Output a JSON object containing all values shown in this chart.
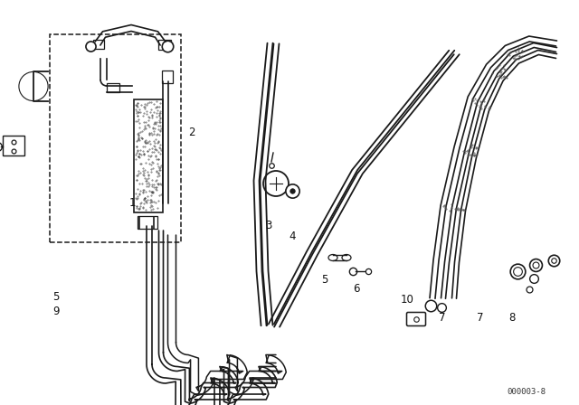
{
  "bg_color": "#ffffff",
  "line_color": "#1a1a1a",
  "diagram_id": "000003-8",
  "figsize": [
    6.4,
    4.48
  ],
  "dpi": 100
}
